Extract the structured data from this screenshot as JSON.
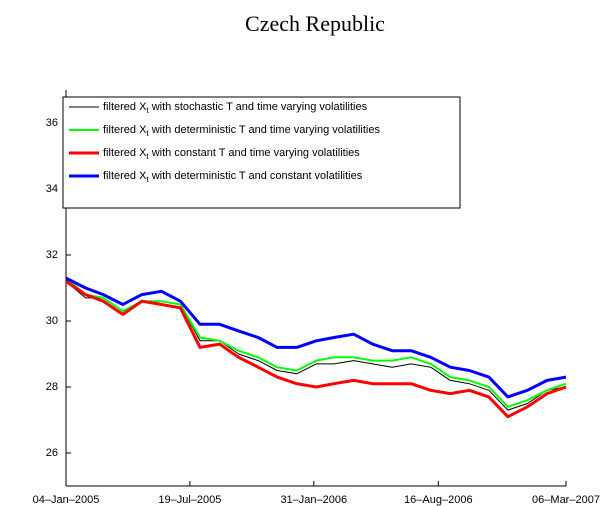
{
  "chart_data": {
    "type": "line",
    "title": "Czech Republic",
    "x": [
      "2005-01-04",
      "2005-02-04",
      "2005-03-04",
      "2005-04-04",
      "2005-05-04",
      "2005-06-04",
      "2005-07-04",
      "2005-08-04",
      "2005-09-04",
      "2005-10-04",
      "2005-11-04",
      "2005-12-04",
      "2006-01-04",
      "2006-02-04",
      "2006-03-04",
      "2006-04-04",
      "2006-05-04",
      "2006-06-04",
      "2006-07-04",
      "2006-08-04",
      "2006-09-04",
      "2006-10-04",
      "2006-11-04",
      "2006-12-04",
      "2007-01-04",
      "2007-02-04",
      "2007-03-06"
    ],
    "series": [
      {
        "name": "filtered Xt with stochastic T and time varying volatilities",
        "color": "#000000",
        "width": 1,
        "values": [
          31.2,
          30.7,
          30.7,
          30.3,
          30.6,
          30.6,
          30.5,
          29.4,
          29.4,
          29.0,
          28.8,
          28.5,
          28.4,
          28.7,
          28.7,
          28.8,
          28.7,
          28.6,
          28.7,
          28.6,
          28.2,
          28.1,
          27.9,
          27.3,
          27.5,
          27.9,
          28.0
        ]
      },
      {
        "name": "filtered Xt with deterministic T and time varying volatilities",
        "color": "#00ff00",
        "width": 2,
        "values": [
          31.3,
          30.8,
          30.7,
          30.3,
          30.6,
          30.6,
          30.5,
          29.5,
          29.4,
          29.1,
          28.9,
          28.6,
          28.5,
          28.8,
          28.9,
          28.9,
          28.8,
          28.8,
          28.9,
          28.7,
          28.3,
          28.2,
          28.0,
          27.4,
          27.6,
          27.9,
          28.1
        ]
      },
      {
        "name": "filtered Xt with constant T and time varying volatilities",
        "color": "#ff0000",
        "width": 3,
        "values": [
          31.2,
          30.8,
          30.6,
          30.2,
          30.6,
          30.5,
          30.4,
          29.2,
          29.3,
          28.9,
          28.6,
          28.3,
          28.1,
          28.0,
          28.1,
          28.2,
          28.1,
          28.1,
          28.1,
          27.9,
          27.8,
          27.9,
          27.7,
          27.1,
          27.4,
          27.8,
          28.0
        ]
      },
      {
        "name": "filtered Xt with deterministic T and constant volatilities",
        "color": "#0000ff",
        "width": 3,
        "values": [
          31.3,
          31.0,
          30.8,
          30.5,
          30.8,
          30.9,
          30.6,
          29.9,
          29.9,
          29.7,
          29.5,
          29.2,
          29.2,
          29.4,
          29.5,
          29.6,
          29.3,
          29.1,
          29.1,
          28.9,
          28.6,
          28.5,
          28.3,
          27.7,
          27.9,
          28.2,
          28.3
        ]
      }
    ],
    "xlim": [
      "2005-01-04",
      "2007-03-06"
    ],
    "xticks": [
      {
        "value": "2005-01-04",
        "label": "04–Jan–2005"
      },
      {
        "value": "2005-07-19",
        "label": "19–Jul–2005"
      },
      {
        "value": "2006-01-31",
        "label": "31–Jan–2006"
      },
      {
        "value": "2006-08-16",
        "label": "16–Aug–2006"
      },
      {
        "value": "2007-03-06",
        "label": "06–Mar–2007"
      }
    ],
    "ylim": [
      25,
      37
    ],
    "yticks": [
      26,
      28,
      30,
      32,
      34,
      36
    ],
    "legend": "upper left"
  }
}
